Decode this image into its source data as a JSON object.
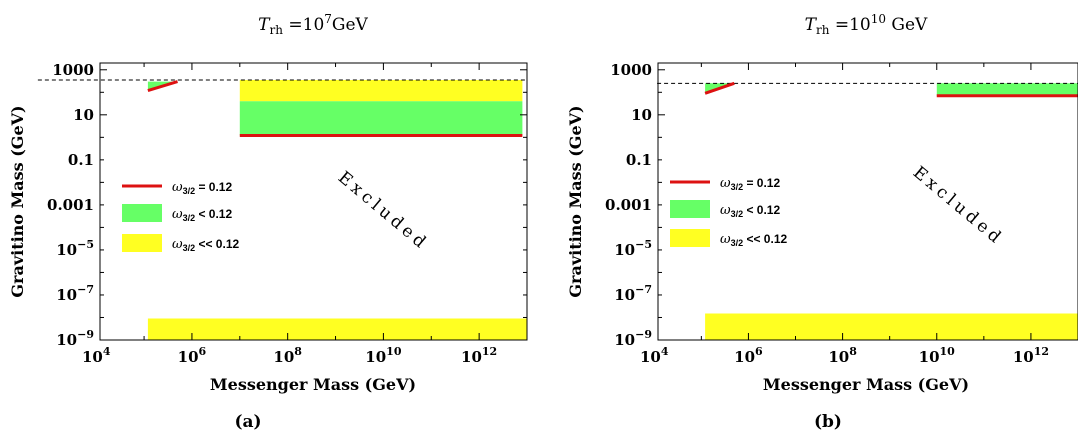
{
  "chart_data": [
    {
      "type": "area",
      "title_main": "T",
      "title_sub": "rh",
      "title_eq": " =10",
      "title_exp": "7",
      "title_unit": "GeV",
      "xlabel": "Messenger Mass (GeV)",
      "ylabel": "Gravitino Mass (GeV)",
      "xscale": "log",
      "yscale": "log",
      "xlim": [
        12000,
        10000000000000
      ],
      "ylim": [
        1e-09,
        2000
      ],
      "x_ticks": [
        {
          "base": "10",
          "exp": "4",
          "value": 10000
        },
        {
          "base": "10",
          "exp": "6",
          "value": 1000000
        },
        {
          "base": "10",
          "exp": "8",
          "value": 100000000
        },
        {
          "base": "10",
          "exp": "10",
          "value": 10000000000
        },
        {
          "base": "10",
          "exp": "12",
          "value": 1000000000000
        }
      ],
      "y_ticks": [
        {
          "label": "1000",
          "value": 1000
        },
        {
          "label": "10",
          "value": 10
        },
        {
          "label": "0.1",
          "value": 0.1
        },
        {
          "label": "0.001",
          "value": 0.001
        },
        {
          "base": "10",
          "exp": "−5",
          "value": 1e-05
        },
        {
          "base": "10",
          "exp": "−7",
          "value": 1e-07
        },
        {
          "base": "10",
          "exp": "−9",
          "value": 1e-09
        }
      ],
      "dashed_line_y": 350,
      "regions": [
        {
          "kind": "lt",
          "color": "#66ff66",
          "polygon": [
            [
              120000,
              300
            ],
            [
              500000,
              300
            ],
            [
              120000,
              120
            ]
          ]
        },
        {
          "kind": "eq",
          "color": "#dd1111",
          "line": [
            [
              120000,
              120
            ],
            [
              500000,
              300
            ]
          ]
        },
        {
          "kind": "ll",
          "color": "#ffff22",
          "polygon": [
            [
              10000000,
              350
            ],
            [
              8000000000000,
              350
            ],
            [
              8000000000000,
              40
            ],
            [
              10000000,
              40
            ]
          ]
        },
        {
          "kind": "lt",
          "color": "#66ff66",
          "polygon": [
            [
              10000000,
              40
            ],
            [
              8000000000000,
              40
            ],
            [
              8000000000000,
              1.2
            ],
            [
              10000000,
              1.2
            ]
          ]
        },
        {
          "kind": "eq",
          "color": "#dd1111",
          "line": [
            [
              10000000,
              1.2
            ],
            [
              8000000000000,
              1.2
            ]
          ]
        },
        {
          "kind": "ll",
          "color": "#ffff22",
          "polygon": [
            [
              120000,
              9e-09
            ],
            [
              10000000000000,
              9e-09
            ],
            [
              10000000000000,
              1e-09
            ],
            [
              120000,
              1e-09
            ]
          ]
        }
      ],
      "legend": [
        {
          "symbol": "ω",
          "sub": "3/2",
          "text": " = 0.12",
          "color": "#dd1111",
          "kind": "line"
        },
        {
          "symbol": "ω",
          "sub": "3/2",
          "text": " < 0.12",
          "color": "#66ff66",
          "kind": "box"
        },
        {
          "symbol": "ω",
          "sub": "3/2",
          "text": " << 0.12",
          "color": "#ffff22",
          "kind": "box"
        }
      ],
      "annotation": "Excluded",
      "caption": "(a)"
    },
    {
      "type": "area",
      "title_main": "T",
      "title_sub": "rh",
      "title_eq": " =10",
      "title_exp": "10",
      "title_unit": " GeV",
      "xlabel": "Messenger Mass (GeV)",
      "ylabel": "Gravitino Mass (GeV)",
      "xscale": "log",
      "yscale": "log",
      "xlim": [
        12000,
        10000000000000
      ],
      "ylim": [
        1e-09,
        2000
      ],
      "x_ticks": [
        {
          "base": "10",
          "exp": "4",
          "value": 10000
        },
        {
          "base": "10",
          "exp": "6",
          "value": 1000000
        },
        {
          "base": "10",
          "exp": "8",
          "value": 100000000
        },
        {
          "base": "10",
          "exp": "10",
          "value": 10000000000
        },
        {
          "base": "10",
          "exp": "12",
          "value": 1000000000000
        }
      ],
      "y_ticks": [
        {
          "label": "1000",
          "value": 1000
        },
        {
          "label": "10",
          "value": 10
        },
        {
          "label": "0.1",
          "value": 0.1
        },
        {
          "label": "0.001",
          "value": 0.001
        },
        {
          "base": "10",
          "exp": "−5",
          "value": 1e-05
        },
        {
          "base": "10",
          "exp": "−7",
          "value": 1e-07
        },
        {
          "base": "10",
          "exp": "−9",
          "value": 1e-09
        }
      ],
      "dashed_line_y": 250,
      "regions": [
        {
          "kind": "lt",
          "color": "#66ff66",
          "polygon": [
            [
              120000,
              250
            ],
            [
              500000,
              250
            ],
            [
              120000,
              90
            ]
          ]
        },
        {
          "kind": "eq",
          "color": "#dd1111",
          "line": [
            [
              120000,
              90
            ],
            [
              500000,
              250
            ]
          ]
        },
        {
          "kind": "lt",
          "color": "#66ff66",
          "polygon": [
            [
              10000000000,
              250
            ],
            [
              10000000000000,
              250
            ],
            [
              10000000000000,
              70
            ],
            [
              10000000000,
              70
            ]
          ]
        },
        {
          "kind": "eq",
          "color": "#dd1111",
          "line": [
            [
              10000000000,
              70
            ],
            [
              10000000000000,
              70
            ]
          ]
        },
        {
          "kind": "ll",
          "color": "#ffff22",
          "polygon": [
            [
              120000,
              1.5e-08
            ],
            [
              10000000000000,
              1.5e-08
            ],
            [
              10000000000000,
              1e-09
            ],
            [
              120000,
              1e-09
            ]
          ]
        }
      ],
      "legend": [
        {
          "symbol": "ω",
          "sub": "3/2",
          "text": " = 0.12",
          "color": "#dd1111",
          "kind": "line"
        },
        {
          "symbol": "ω",
          "sub": "3/2",
          "text": " < 0.12",
          "color": "#66ff66",
          "kind": "box"
        },
        {
          "symbol": "ω",
          "sub": "3/2",
          "text": " << 0.12",
          "color": "#ffff22",
          "kind": "box"
        }
      ],
      "annotation": "Excluded",
      "caption": "(b)"
    }
  ]
}
